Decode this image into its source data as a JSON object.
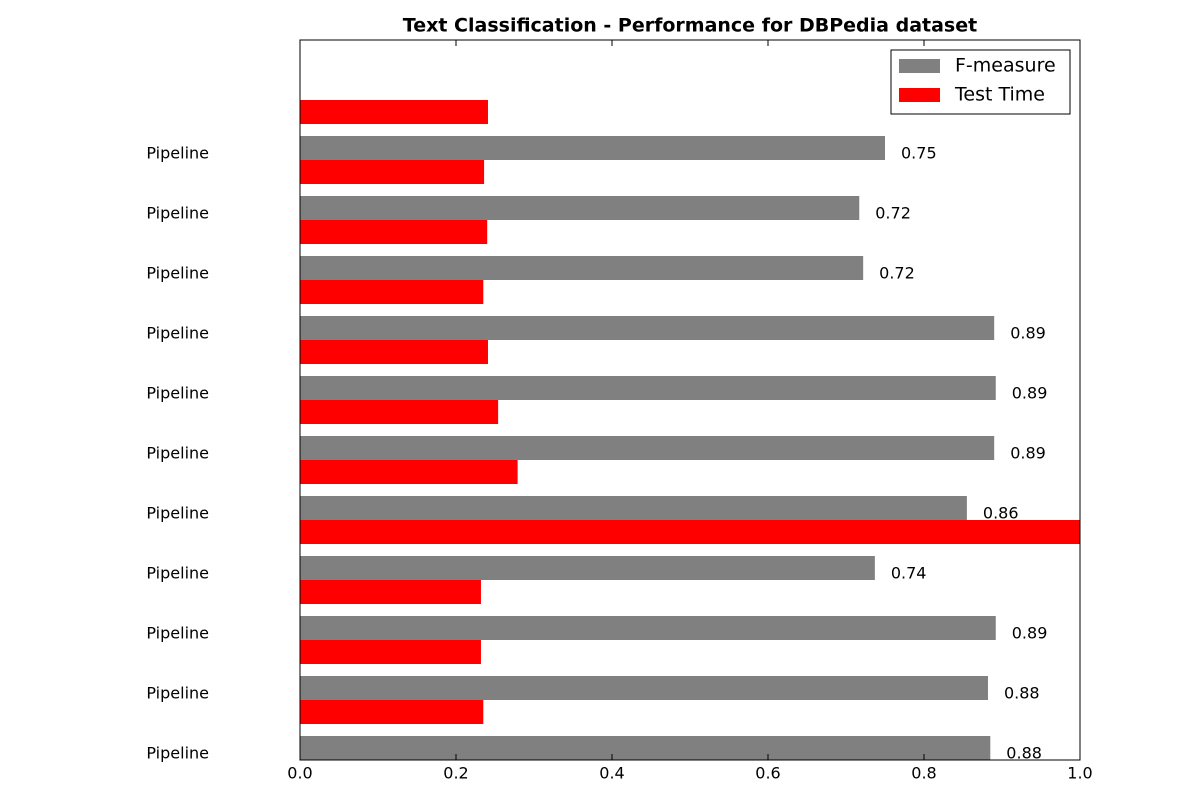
{
  "chart_data": {
    "type": "hbar-grouped",
    "title": "Text Classification - Performance for DBPedia dataset",
    "categories": [
      null,
      "Pipeline",
      "Pipeline",
      "Pipeline",
      "Pipeline",
      "Pipeline",
      "Pipeline",
      "Pipeline",
      "Pipeline",
      "Pipeline",
      "Pipeline",
      "Pipeline"
    ],
    "series": [
      {
        "name": "F-measure",
        "color": "#808080",
        "values": [
          null,
          0.75,
          0.717,
          0.722,
          0.89,
          0.892,
          0.89,
          0.855,
          0.737,
          0.892,
          0.882,
          0.885
        ],
        "value_labels": [
          null,
          "0.75",
          "0.72",
          "0.72",
          "0.89",
          "0.89",
          "0.89",
          "0.86",
          "0.74",
          "0.89",
          "0.88",
          "0.88"
        ]
      },
      {
        "name": "Test Time",
        "color": "#ff0000",
        "values": [
          0.241,
          0.236,
          0.24,
          0.235,
          0.241,
          0.254,
          0.279,
          1.0,
          0.232,
          0.232,
          0.235,
          null
        ]
      }
    ],
    "xlim": [
      0,
      1
    ],
    "xticks": [
      {
        "value": 0,
        "label": "0.0"
      },
      0.2,
      0.4,
      0.6,
      0.8,
      {
        "value": 1,
        "label": "1.0"
      }
    ],
    "legend": "upper right"
  }
}
